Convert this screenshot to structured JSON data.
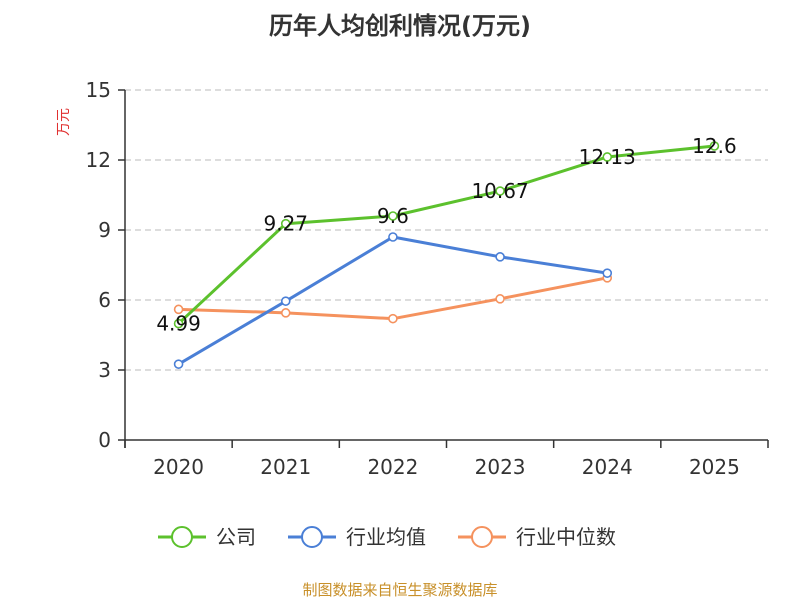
{
  "chart_data": {
    "type": "line",
    "title": "历年人均创利情况(万元)",
    "ylabel": "万元",
    "xlabel": "",
    "ylim": [
      0,
      15
    ],
    "yticks": [
      0,
      3,
      6,
      9,
      12,
      15
    ],
    "categories": [
      "2020",
      "2021",
      "2022",
      "2023",
      "2024",
      "2025"
    ],
    "grid": true,
    "legend_position": "bottom",
    "series": [
      {
        "name": "公司",
        "color": "#5cc12d",
        "values": [
          4.99,
          9.27,
          9.6,
          10.67,
          12.13,
          12.6
        ],
        "labels": [
          "4.99",
          "9.27",
          "9.6",
          "10.67",
          "12.13",
          "12.6"
        ]
      },
      {
        "name": "行业均值",
        "color": "#4a7fd6",
        "values": [
          3.25,
          5.95,
          8.7,
          7.85,
          7.15,
          null
        ]
      },
      {
        "name": "行业中位数",
        "color": "#f5925e",
        "values": [
          5.6,
          5.45,
          5.2,
          6.05,
          6.95,
          null
        ]
      }
    ],
    "source": "制图数据来自恒生聚源数据库"
  }
}
